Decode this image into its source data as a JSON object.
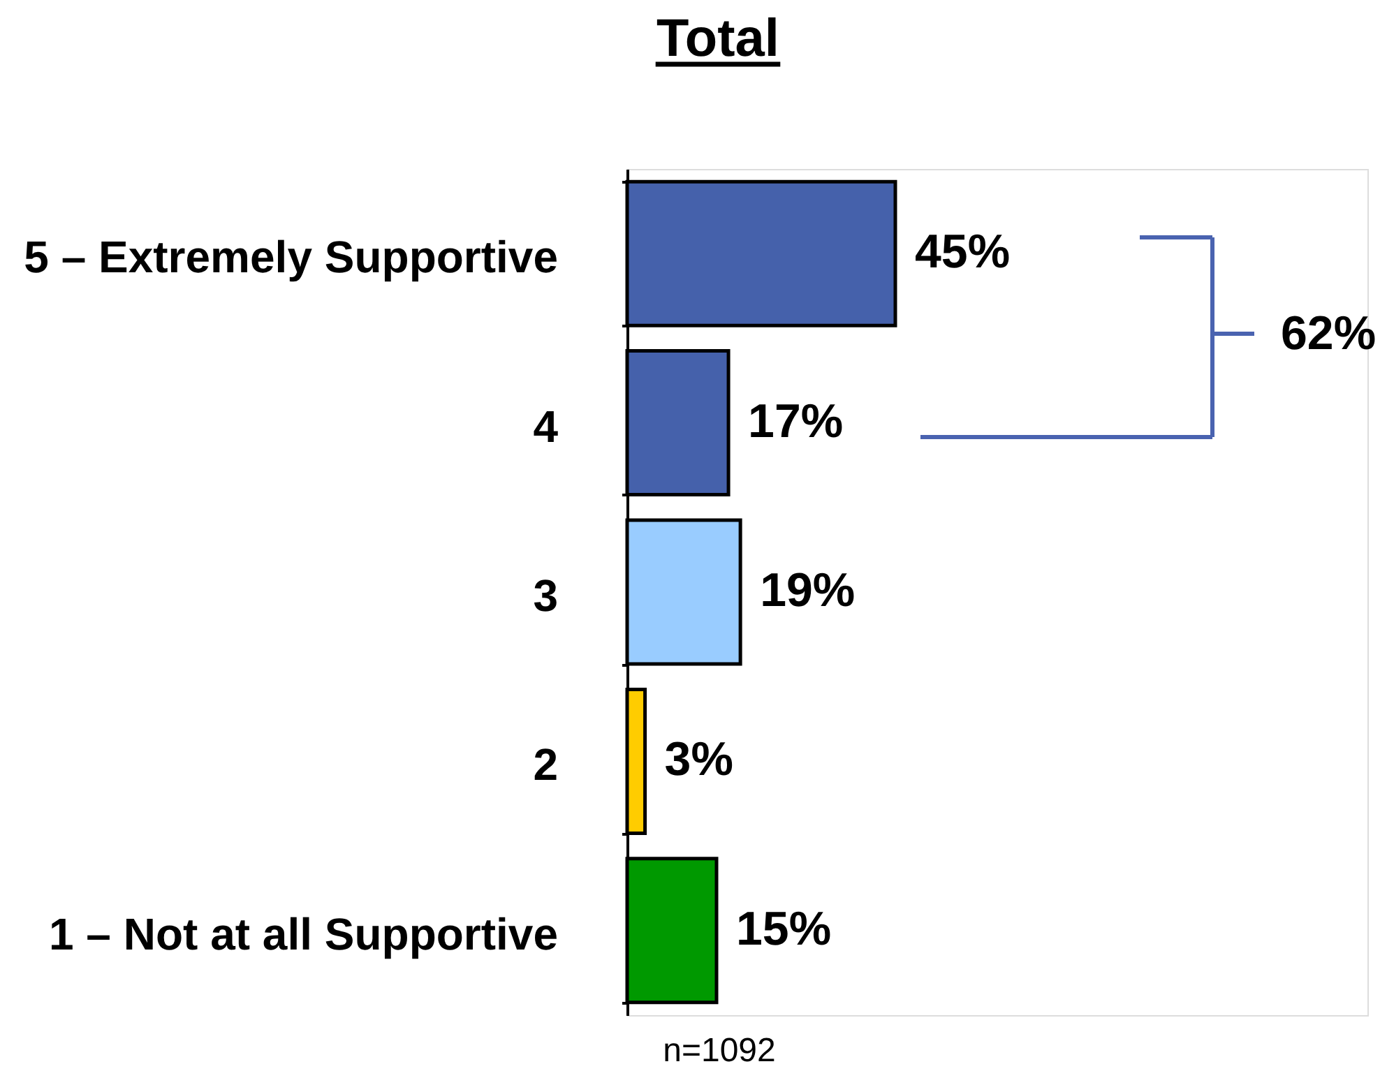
{
  "chart_data": {
    "type": "bar",
    "orientation": "horizontal",
    "title": "Total",
    "categories": [
      "5 – Extremely Supportive",
      "4",
      "3",
      "2",
      "1 – Not at all Supportive"
    ],
    "values": [
      45,
      17,
      19,
      3,
      15
    ],
    "colors": [
      "#4561ab",
      "#4561ab",
      "#99ccff",
      "#ffcc00",
      "#009900"
    ],
    "value_labels": [
      "45%",
      "17%",
      "19%",
      "3%",
      "15%"
    ],
    "tick_labels": "y",
    "annotations": [
      "62%",
      "n=1092"
    ]
  }
}
